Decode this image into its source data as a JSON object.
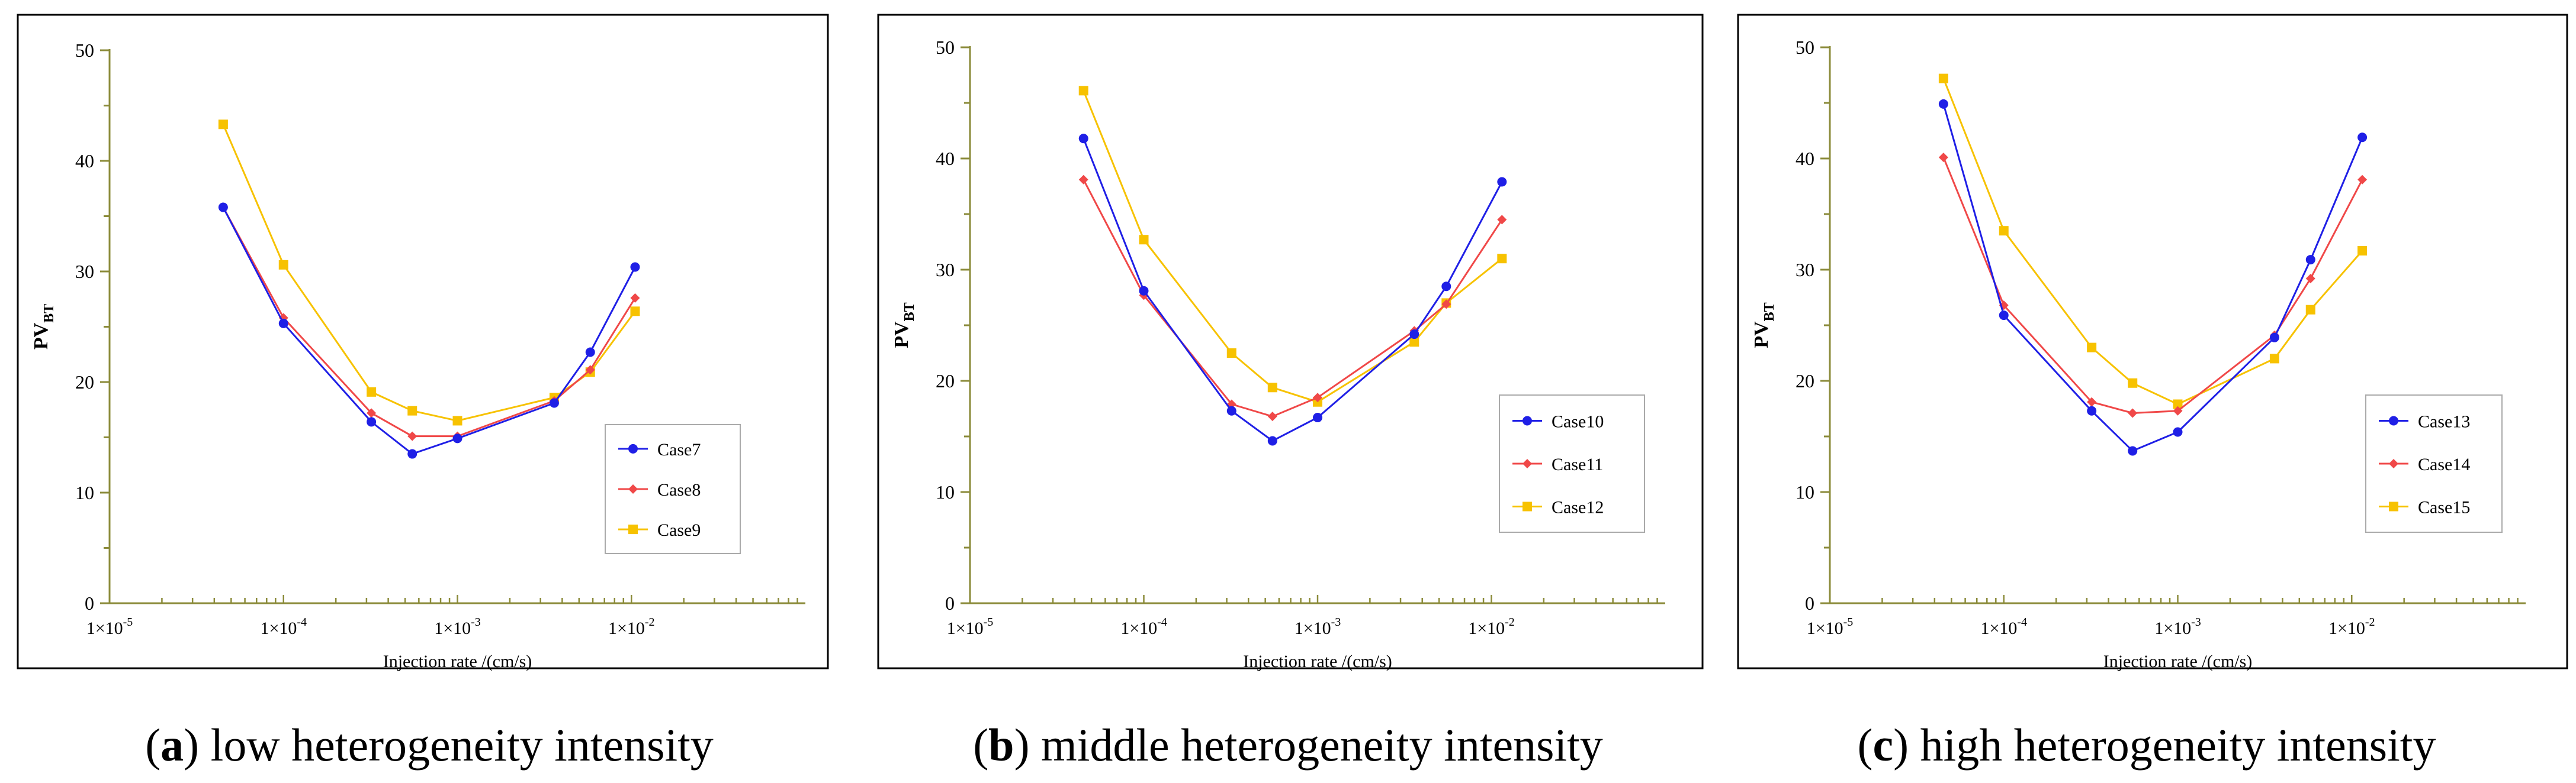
{
  "chart_data": [
    {
      "type": "line",
      "panel": "a",
      "caption": "low heterogeneity intensity",
      "xlabel": "Injection rate /(cm/s)",
      "ylabel": "PV_BT",
      "ylabel_main": "PV",
      "ylabel_sub": "BT",
      "xscale": "log",
      "xlim": [
        1e-05,
        0.1
      ],
      "ylim": [
        0,
        50
      ],
      "yticks": [
        0,
        10,
        20,
        30,
        40,
        50
      ],
      "xtick_labels": [
        {
          "value": 1e-05,
          "base": "1×10",
          "exp": "-5"
        },
        {
          "value": 0.0001,
          "base": "1×10",
          "exp": "-4"
        },
        {
          "value": 0.001,
          "base": "1×10",
          "exp": "-3"
        },
        {
          "value": 0.01,
          "base": "1×10",
          "exp": "-2"
        }
      ],
      "legend": "lower-right",
      "series": [
        {
          "name": "Case7",
          "color": "#1f1fe6",
          "marker": "circle",
          "x": [
            4.5e-05,
            0.0001,
            0.00032,
            0.00055,
            0.001,
            0.0036,
            0.0058,
            0.0105
          ],
          "y": [
            35.8,
            25.3,
            16.4,
            13.5,
            14.9,
            18.1,
            22.7,
            30.4
          ]
        },
        {
          "name": "Case8",
          "color": "#f04848",
          "marker": "diamond",
          "x": [
            4.5e-05,
            0.0001,
            0.00032,
            0.00055,
            0.001,
            0.0036,
            0.0058,
            0.0105
          ],
          "y": [
            35.8,
            25.8,
            17.2,
            15.1,
            15.1,
            18.3,
            21.1,
            27.6
          ]
        },
        {
          "name": "Case9",
          "color": "#f7c200",
          "marker": "square",
          "x": [
            4.5e-05,
            0.0001,
            0.00032,
            0.00055,
            0.001,
            0.0036,
            0.0058,
            0.0105
          ],
          "y": [
            43.3,
            30.6,
            19.1,
            17.4,
            16.5,
            18.6,
            20.9,
            26.4
          ]
        }
      ]
    },
    {
      "type": "line",
      "panel": "b",
      "caption": "middle heterogeneity intensity",
      "xlabel": "Injection rate /(cm/s)",
      "ylabel": "PV_BT",
      "ylabel_main": "PV",
      "ylabel_sub": "BT",
      "xscale": "log",
      "xlim": [
        1e-05,
        0.1
      ],
      "ylim": [
        0,
        50
      ],
      "yticks": [
        0,
        10,
        20,
        30,
        40,
        50
      ],
      "xtick_labels": [
        {
          "value": 1e-05,
          "base": "1×10",
          "exp": "-5"
        },
        {
          "value": 0.0001,
          "base": "1×10",
          "exp": "-4"
        },
        {
          "value": 0.001,
          "base": "1×10",
          "exp": "-3"
        },
        {
          "value": 0.01,
          "base": "1×10",
          "exp": "-2"
        }
      ],
      "legend": "lower-right",
      "series": [
        {
          "name": "Case10",
          "color": "#1f1fe6",
          "marker": "circle",
          "x": [
            4.5e-05,
            0.0001,
            0.00032,
            0.00055,
            0.001,
            0.0036,
            0.0055,
            0.0115
          ],
          "y": [
            41.8,
            28.1,
            17.3,
            14.6,
            16.7,
            24.2,
            28.5,
            37.9
          ]
        },
        {
          "name": "Case11",
          "color": "#f04848",
          "marker": "diamond",
          "x": [
            4.5e-05,
            0.0001,
            0.00032,
            0.00055,
            0.001,
            0.0036,
            0.0055,
            0.0115
          ],
          "y": [
            38.1,
            27.7,
            17.9,
            16.8,
            18.5,
            24.5,
            26.9,
            34.5
          ]
        },
        {
          "name": "Case12",
          "color": "#f7c200",
          "marker": "square",
          "x": [
            4.5e-05,
            0.0001,
            0.00032,
            0.00055,
            0.001,
            0.0036,
            0.0055,
            0.0115
          ],
          "y": [
            46.1,
            32.7,
            22.5,
            19.4,
            18.1,
            23.5,
            27.0,
            31.0
          ]
        }
      ]
    },
    {
      "type": "line",
      "panel": "c",
      "caption": "high heterogeneity intensity",
      "xlabel": "Injection rate /(cm/s)",
      "ylabel": "PV_BT",
      "ylabel_main": "PV",
      "ylabel_sub": "BT",
      "xscale": "log",
      "xlim": [
        1e-05,
        0.1
      ],
      "ylim": [
        0,
        50
      ],
      "yticks": [
        0,
        10,
        20,
        30,
        40,
        50
      ],
      "xtick_labels": [
        {
          "value": 1e-05,
          "base": "1×10",
          "exp": "-5"
        },
        {
          "value": 0.0001,
          "base": "1×10",
          "exp": "-4"
        },
        {
          "value": 0.001,
          "base": "1×10",
          "exp": "-3"
        },
        {
          "value": 0.01,
          "base": "1×10",
          "exp": "-2"
        }
      ],
      "legend": "lower-right",
      "series": [
        {
          "name": "Case13",
          "color": "#1f1fe6",
          "marker": "circle",
          "x": [
            4.5e-05,
            0.0001,
            0.00032,
            0.00055,
            0.001,
            0.0036,
            0.0058,
            0.0115
          ],
          "y": [
            44.9,
            25.9,
            17.3,
            13.7,
            15.4,
            23.9,
            30.9,
            41.9
          ]
        },
        {
          "name": "Case14",
          "color": "#f04848",
          "marker": "diamond",
          "x": [
            4.5e-05,
            0.0001,
            0.00032,
            0.00055,
            0.001,
            0.0036,
            0.0058,
            0.0115
          ],
          "y": [
            40.1,
            26.8,
            18.1,
            17.1,
            17.3,
            24.1,
            29.2,
            38.1
          ]
        },
        {
          "name": "Case15",
          "color": "#f7c200",
          "marker": "square",
          "x": [
            4.5e-05,
            0.0001,
            0.00032,
            0.00055,
            0.001,
            0.0036,
            0.0058,
            0.0115
          ],
          "y": [
            47.2,
            33.5,
            23.0,
            19.8,
            17.9,
            22.0,
            26.4,
            31.7
          ]
        }
      ]
    }
  ]
}
